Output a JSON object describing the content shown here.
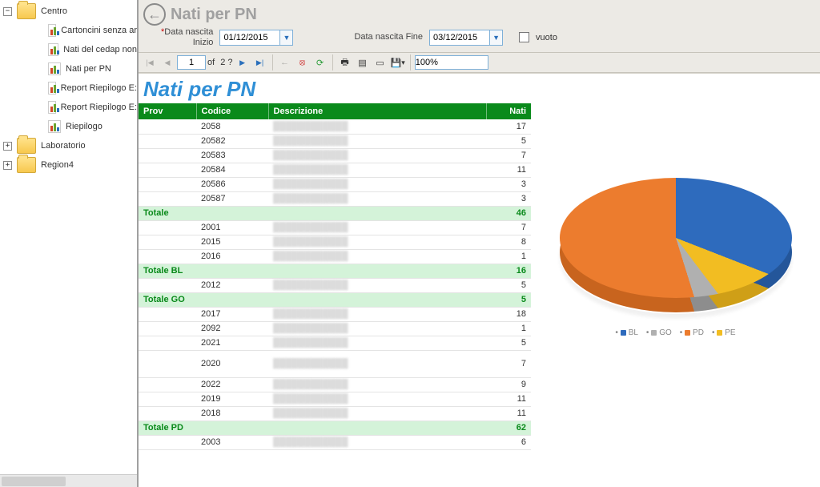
{
  "sidebar": {
    "items": [
      {
        "type": "folder",
        "label": "Centro",
        "level": 1,
        "expanded": true
      },
      {
        "type": "report",
        "label": "Cartoncini senza ar",
        "level": 2
      },
      {
        "type": "report",
        "label": "Nati del cedap non",
        "level": 2
      },
      {
        "type": "report",
        "label": "Nati per PN",
        "level": 2
      },
      {
        "type": "report",
        "label": "Report Riepilogo E:",
        "level": 2
      },
      {
        "type": "report",
        "label": "Report Riepilogo E:",
        "level": 2
      },
      {
        "type": "report",
        "label": "Riepilogo",
        "level": 2
      },
      {
        "type": "folder",
        "label": "Laboratorio",
        "level": 1,
        "expanded": false
      },
      {
        "type": "folder",
        "label": "Region4",
        "level": 1,
        "expanded": false
      }
    ]
  },
  "header": {
    "title": "Nati per PN",
    "filter_start_label": "Data nascita\nInizio",
    "filter_start_value": "01/12/2015",
    "filter_end_label": "Data nascita Fine",
    "filter_end_value": "03/12/2015",
    "check_label": "vuoto",
    "filter_star": "*"
  },
  "toolbar": {
    "page_current": "1",
    "page_of": "of",
    "page_total": "2 ?",
    "zoom": "100%"
  },
  "report": {
    "title": "Nati per PN",
    "columns": [
      "Prov",
      "Codice",
      "Descrizione",
      "Nati"
    ],
    "groups": [
      {
        "prov": "",
        "rows": [
          {
            "codice": "2058",
            "desc": "",
            "nati": 17
          },
          {
            "codice": "20582",
            "desc": "",
            "nati": 5
          },
          {
            "codice": "20583",
            "desc": "",
            "nati": 7
          },
          {
            "codice": "20584",
            "desc": "",
            "nati": 11
          },
          {
            "codice": "20586",
            "desc": "",
            "nati": 3
          },
          {
            "codice": "20587",
            "desc": "",
            "nati": 3
          }
        ],
        "total_label": "Totale",
        "total": 46
      },
      {
        "prov": "",
        "rows": [
          {
            "codice": "2001",
            "desc": "",
            "nati": 7
          },
          {
            "codice": "2015",
            "desc": "",
            "nati": 8
          },
          {
            "codice": "2016",
            "desc": "",
            "nati": 1
          }
        ],
        "total_label": "Totale BL",
        "total": 16
      },
      {
        "prov": "",
        "rows": [
          {
            "codice": "2012",
            "desc": "",
            "nati": 5
          }
        ],
        "total_label": "Totale GO",
        "total": 5
      },
      {
        "prov": "",
        "rows": [
          {
            "codice": "2017",
            "desc": "",
            "nati": 18
          },
          {
            "codice": "2092",
            "desc": "",
            "nati": 1
          },
          {
            "codice": "2021",
            "desc": "",
            "nati": 5
          },
          {
            "codice": "2020",
            "desc": "",
            "nati": 7,
            "tall": true
          },
          {
            "codice": "2022",
            "desc": "",
            "nati": 9
          },
          {
            "codice": "2019",
            "desc": "",
            "nati": 11
          },
          {
            "codice": "2018",
            "desc": "",
            "nati": 11
          }
        ],
        "total_label": "Totale PD",
        "total": 62
      },
      {
        "prov": "",
        "rows": [
          {
            "codice": "2003",
            "desc": "",
            "nati": 6
          }
        ],
        "total_label": "",
        "total": null
      }
    ]
  },
  "pie": {
    "type": "pie",
    "series": [
      {
        "label": "BL",
        "value": 16,
        "color": "#2e6bbd",
        "dark": "#24569a"
      },
      {
        "label": "GO",
        "value": 5,
        "color": "#b0b0b0",
        "dark": "#8d8d8d"
      },
      {
        "label": "PD",
        "value": 62,
        "color": "#ec7c2e",
        "dark": "#c8641e"
      },
      {
        "label": "PE",
        "value": 8,
        "color": "#f2bd22",
        "dark": "#cf9f17"
      }
    ],
    "legend_title": "",
    "background_color": "#ffffff"
  }
}
